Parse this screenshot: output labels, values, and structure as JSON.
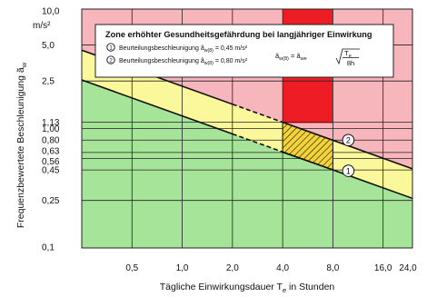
{
  "chart_data": {
    "type": "line",
    "xlabel": "Tägliche Einwirkungsdauer T",
    "xlabel_sub": "e",
    "xlabel_suffix": " in Stunden",
    "ylabel": "Frequenzbewertete Beschleunigung ",
    "ylabel_symbol": "ã",
    "ylabel_sub": "w",
    "y_unit_label": "m/s²",
    "x_scale": "log2",
    "y_scale": "log",
    "xlim": [
      0.25,
      24.0
    ],
    "ylim": [
      0.1,
      10.0
    ],
    "x_ticks": [
      {
        "value": 0.5,
        "label": "0,5"
      },
      {
        "value": 1.0,
        "label": "1,0"
      },
      {
        "value": 2.0,
        "label": "2,0"
      },
      {
        "value": 4.0,
        "label": "4,0"
      },
      {
        "value": 8.0,
        "label": "8,0"
      },
      {
        "value": 16.0,
        "label": "16,0"
      },
      {
        "value": 24.0,
        "label": "24,0"
      }
    ],
    "y_ticks": [
      {
        "value": 10.0,
        "label": "10,0"
      },
      {
        "value": 5.0,
        "label": "5,0"
      },
      {
        "value": 2.5,
        "label": "2,5"
      },
      {
        "value": 1.13,
        "label": "1,13"
      },
      {
        "value": 1.0,
        "label": "1,00"
      },
      {
        "value": 0.8,
        "label": "0,80"
      },
      {
        "value": 0.63,
        "label": "0,63"
      },
      {
        "value": 0.56,
        "label": "0,56"
      },
      {
        "value": 0.45,
        "label": "0,45"
      },
      {
        "value": 0.25,
        "label": "0,25"
      },
      {
        "value": 0.1,
        "label": "0,1"
      }
    ],
    "series": [
      {
        "marker": "1",
        "reference_value": 0.45,
        "points": [
          [
            0.25,
            2.55
          ],
          [
            24.0,
            0.26
          ]
        ]
      },
      {
        "marker": "2",
        "reference_value": 0.8,
        "points": [
          [
            0.25,
            4.53
          ],
          [
            24.0,
            0.46
          ]
        ]
      }
    ],
    "red_band_x": [
      4.0,
      8.0
    ],
    "hatched_region": [
      [
        4.0,
        1.13
      ],
      [
        8.0,
        0.8
      ],
      [
        8.0,
        0.45
      ],
      [
        4.0,
        0.63
      ]
    ],
    "legend": {
      "title": "Zone erhöhter Gesundheitsgefährdung bei langjähriger Einwirkung",
      "entries": [
        {
          "marker": "1",
          "text": "Beurteilungsbeschleunigung  ã",
          "sub": "w(8)",
          "value": " = 0,45 m/s²"
        },
        {
          "marker": "2",
          "text": "Beurteilungsbeschleunigung  ã",
          "sub": "w(8)",
          "value": " = 0,80 m/s²"
        }
      ],
      "formula_lhs": "ã",
      "formula_lhs_sub": "w(8)",
      "formula_mid": " = ã",
      "formula_mid_sub": "we",
      "formula_num": "T",
      "formula_num_sub": "e",
      "formula_den": "8h"
    },
    "colors": {
      "zone_red": "#f7b5bc",
      "zone_yellow": "#fbf79b",
      "zone_green": "#a6e49a",
      "band_red": "#ee1c25",
      "hatch": "#f4d33a",
      "line": "#111111"
    }
  }
}
